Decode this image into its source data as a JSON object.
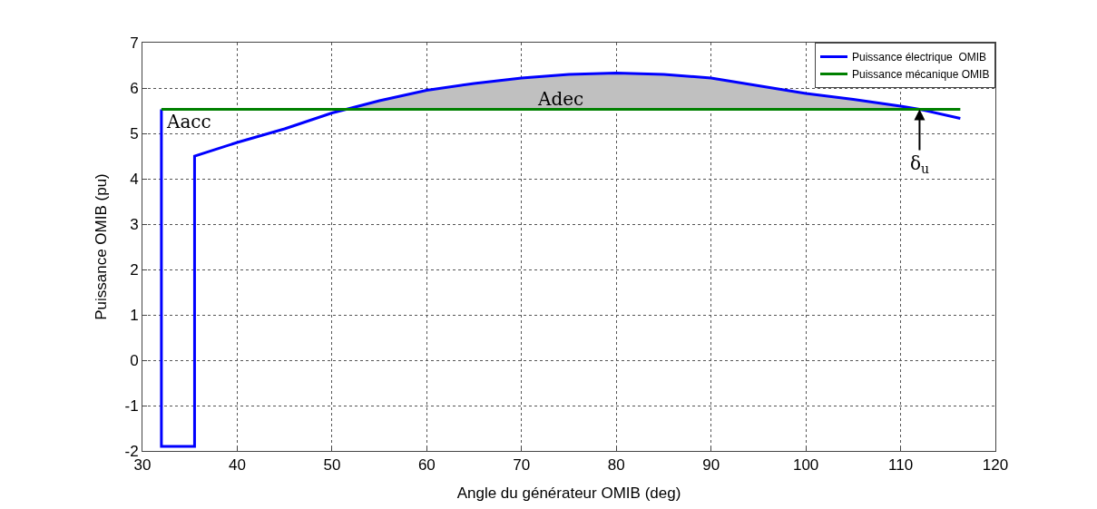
{
  "chart_data": {
    "type": "line",
    "xlabel": "Angle du générateur OMIB (deg)",
    "ylabel": "Puissance OMIB (pu)",
    "xlim": [
      30,
      120
    ],
    "xticks": [
      30,
      40,
      50,
      60,
      70,
      80,
      90,
      100,
      110,
      120
    ],
    "ylim": [
      -2,
      7
    ],
    "yticks": [
      -2,
      -1,
      0,
      1,
      2,
      3,
      4,
      5,
      6,
      7
    ],
    "grid": true,
    "legend": "top right",
    "marker": "none",
    "line_style": "solid",
    "series": [
      {
        "name": "Puissance électrique  OMIB",
        "color": "#0000ff",
        "x": [
          32,
          32,
          35.5,
          35.5,
          40,
          45,
          50,
          51.5,
          55,
          60,
          65,
          70,
          75,
          80,
          85,
          90,
          95,
          100,
          105,
          110,
          112,
          116.3
        ],
        "values": [
          5.53,
          -1.9,
          -1.9,
          4.5,
          4.8,
          5.1,
          5.45,
          5.53,
          5.72,
          5.95,
          6.1,
          6.22,
          6.3,
          6.33,
          6.3,
          6.22,
          6.05,
          5.88,
          5.75,
          5.6,
          5.53,
          5.33
        ]
      },
      {
        "name": "Puissance mécanique OMIB",
        "color": "#008000",
        "x": [
          32,
          116.3
        ],
        "values": [
          5.53,
          5.53
        ]
      },
      {
        "type": "area",
        "color": "#c0c0c0",
        "x": [
          51.5,
          55,
          60,
          65,
          70,
          75,
          80,
          85,
          90,
          95,
          100,
          105,
          110,
          112
        ],
        "values": [
          5.53,
          5.72,
          5.95,
          6.1,
          6.22,
          6.3,
          6.33,
          6.3,
          6.22,
          6.05,
          5.88,
          5.75,
          5.6,
          5.53
        ]
      }
    ],
    "annotations": [
      "Aacc",
      "Adec",
      {
        "text": "δ$_{u}$",
        "x": 112,
        "y": 5.53
      }
    ]
  }
}
